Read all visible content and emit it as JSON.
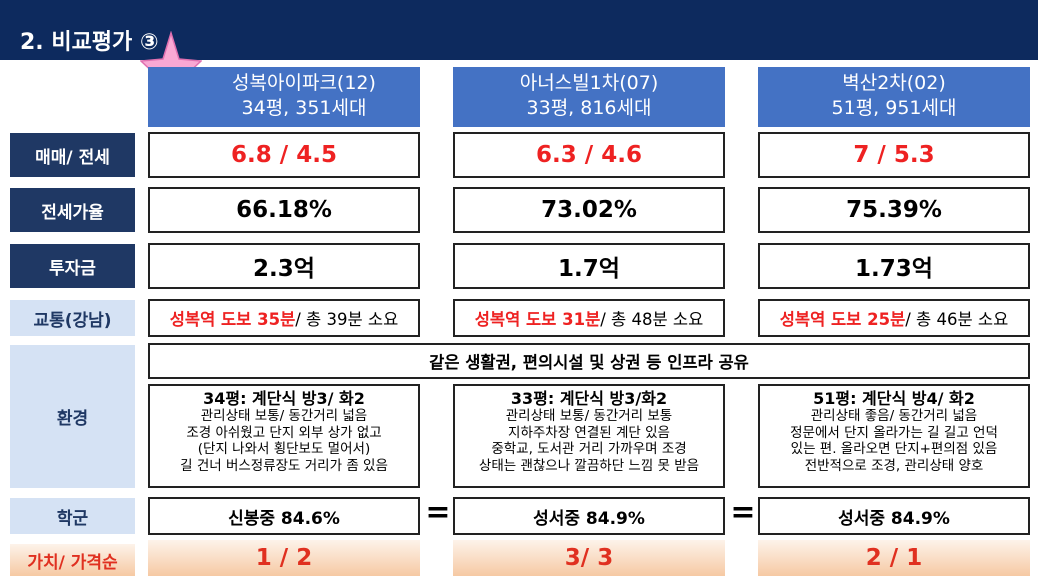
{
  "title": "2. 비교평가 ③",
  "star_icon": "star-icon",
  "colors": {
    "header": "#0d2a5e",
    "apt_header": "#4472c4",
    "label_dark": "#1f3864",
    "label_light": "#d5e2f4",
    "accent": "#ee2222"
  },
  "apartments": [
    {
      "name": "성복아이파크(12)",
      "size": "34평, 351세대"
    },
    {
      "name": "아너스빌1차(07)",
      "size": "33평, 816세대"
    },
    {
      "name": "벽산2차(02)",
      "size": "51평, 951세대"
    }
  ],
  "rows": {
    "sale": {
      "label": "매매/ 전세",
      "values": [
        "6.8 / 4.5",
        "6.3 / 4.6",
        "7 / 5.3"
      ]
    },
    "ratio": {
      "label": "전세가율",
      "values": [
        "66.18%",
        "73.02%",
        "75.39%"
      ]
    },
    "invest": {
      "label": "투자금",
      "values": [
        "2.3억",
        "1.7억",
        "1.73억"
      ]
    },
    "traffic": {
      "label": "교통(강남)",
      "items": [
        {
          "highlight": "성복역 도보 35분",
          "rest": "/ 총 39분 소요"
        },
        {
          "highlight": "성복역 도보 31분",
          "rest": "/ 총 48분 소요"
        },
        {
          "highlight": "성복역 도보 25분",
          "rest": "/ 총 46분 소요"
        }
      ]
    },
    "environment": {
      "label": "환경",
      "shared": "같은 생활권, 편의시설 및 상권 등 인프라 공유",
      "items": [
        {
          "heading": "34평: 계단식 방3/ 화2",
          "lines": [
            "관리상태 보통/ 동간거리 넓음",
            "조경 아쉬웠고 단지 외부 상가 없고",
            "(단지 나와서 횡단보도 멀어서)",
            "길 건너 버스정류장도 거리가 좀 있음"
          ]
        },
        {
          "heading": "33평: 계단식 방3/화2",
          "lines": [
            "관리상태 보통/ 동간거리 보통",
            "지하주차장 연결된 계단 있음",
            "중학교, 도서관 거리 가까우며 조경",
            "상태는 괜찮으나 깔끔하단 느낌 못 받음"
          ]
        },
        {
          "heading": "51평: 계단식 방4/ 화2",
          "lines": [
            "관리상태 좋음/ 동간거리 넓음",
            "정문에서 단지 올라가는 길 길고 언덕",
            "있는 편. 올라오면 단지+편의점 있음",
            "전반적으로 조경, 관리상태 양호"
          ]
        }
      ]
    },
    "school": {
      "label": "학군",
      "values": [
        "신봉중 84.6%",
        "성서중 84.9%",
        "성서중 84.9%"
      ],
      "separators": [
        "=",
        "="
      ]
    },
    "value": {
      "label": "가치/ 가격순",
      "values": [
        "1 / 2",
        "3/ 3",
        "2 / 1"
      ]
    }
  }
}
